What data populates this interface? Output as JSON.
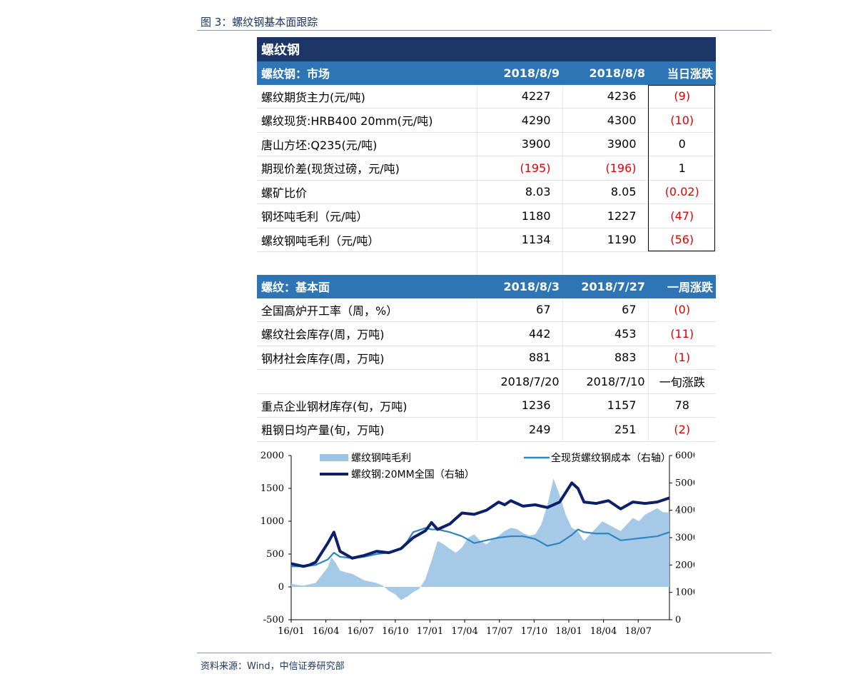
{
  "figure_title": "图 3：螺纹钢基本面跟踪",
  "source": "资料来源：Wind，中信证券研究部",
  "table": {
    "title": "螺纹钢",
    "market_header": [
      "螺纹钢：市场",
      "2018/8/9",
      "2018/8/8",
      "当日涨跌"
    ],
    "market_rows": [
      {
        "label": "螺纹期货主力(元/吨)",
        "v1": "4227",
        "v2": "4236",
        "chg": "(9)",
        "neg": true
      },
      {
        "label": "螺纹现货:HRB400 20mm(元/吨)",
        "v1": "4290",
        "v2": "4300",
        "chg": "(10)",
        "neg": true
      },
      {
        "label": "唐山方坯:Q235(元/吨)",
        "v1": "3900",
        "v2": "3900",
        "chg": "0",
        "neg": false
      },
      {
        "label": "期现价差(现货过磅，元/吨)",
        "v1": "(195)",
        "v2": "(196)",
        "chg": "1",
        "neg": false,
        "v_neg": true
      },
      {
        "label": "螺矿比价",
        "v1": "8.03",
        "v2": "8.05",
        "chg": "(0.02)",
        "neg": true
      },
      {
        "label": "钢坯吨毛利（元/吨）",
        "v1": "1180",
        "v2": "1227",
        "chg": "(47)",
        "neg": true
      },
      {
        "label": "螺纹钢吨毛利（元/吨）",
        "v1": "1134",
        "v2": "1190",
        "chg": "(56)",
        "neg": true
      }
    ],
    "fund_header": [
      "螺纹：基本面",
      "2018/8/3",
      "2018/7/27",
      "一周涨跌"
    ],
    "fund_rows": [
      {
        "label": "全国高炉开工率（周，%）",
        "v1": "67",
        "v2": "67",
        "chg": "(0)",
        "neg": true
      },
      {
        "label": "螺纹社会库存(周，万吨)",
        "v1": "442",
        "v2": "453",
        "chg": "(11)",
        "neg": true
      },
      {
        "label": "钢材社会库存(周，万吨)",
        "v1": "881",
        "v2": "883",
        "chg": "(1)",
        "neg": true
      }
    ],
    "sub_header": [
      "2018/7/20",
      "2018/7/10",
      "一旬涨跌"
    ],
    "sub_rows": [
      {
        "label": "重点企业钢材库存(旬，万吨)",
        "v1": "1236",
        "v2": "1157",
        "chg": "78",
        "neg": false
      },
      {
        "label": "粗钢日均产量(旬，万吨)",
        "v1": "249",
        "v2": "251",
        "chg": "(2)",
        "neg": true
      }
    ]
  },
  "chart_data": {
    "type": "area",
    "x_ticks": [
      "16/01",
      "16/04",
      "16/07",
      "16/10",
      "17/01",
      "17/04",
      "17/07",
      "17/10",
      "18/01",
      "18/04",
      "18/07"
    ],
    "y_left_ticks": [
      "2000",
      "1500",
      "1000",
      "500",
      "0",
      "-500"
    ],
    "y_right_ticks": [
      "6000",
      "5000",
      "4000",
      "3000",
      "2000",
      "1000",
      "0"
    ],
    "ylim_left": [
      -500,
      2000
    ],
    "ylim_right": [
      0,
      6000
    ],
    "series": [
      {
        "name": "螺纹钢吨毛利",
        "axis": "left",
        "style": "area",
        "color": "#9dc3e6",
        "x": [
          0,
          0.5,
          1,
          1.5,
          2,
          2.5,
          3,
          3.3,
          3.6,
          4,
          4.5,
          5,
          5.5,
          6,
          6.5,
          7,
          7.5,
          8,
          8.5,
          9,
          9.5,
          10,
          10.5,
          11,
          11.5,
          12,
          12.5,
          13,
          13.5,
          14,
          14.5,
          15,
          15.5,
          16,
          16.5,
          17,
          17.5,
          18,
          18.5,
          19,
          19.5,
          20,
          20.5,
          21,
          21.5,
          22,
          22.5,
          23,
          23.5,
          24,
          24.5,
          25,
          25.5,
          26,
          26.5,
          27,
          27.5,
          28,
          28.5,
          29,
          29.5,
          30,
          30.5,
          31
        ],
        "y": [
          50,
          30,
          20,
          40,
          60,
          180,
          300,
          450,
          380,
          250,
          220,
          200,
          150,
          100,
          80,
          60,
          20,
          -60,
          -110,
          -200,
          -150,
          -80,
          -30,
          120,
          400,
          700,
          650,
          580,
          520,
          600,
          750,
          800,
          700,
          650,
          720,
          780,
          850,
          900,
          880,
          820,
          780,
          800,
          950,
          1250,
          1650,
          1400,
          1100,
          900,
          850,
          700,
          800,
          900,
          1000,
          950,
          900,
          850,
          950,
          1050,
          1000,
          1100,
          1150,
          1200,
          1134,
          1134
        ]
      },
      {
        "name": "全现货螺纹钢成本（右轴）",
        "axis": "right",
        "style": "line",
        "color": "#2e86c1",
        "x": [
          0,
          1,
          2,
          3,
          3.5,
          4,
          5,
          6,
          7,
          8,
          9,
          9.5,
          10,
          11,
          11.5,
          12,
          13,
          14,
          15,
          16,
          17,
          18,
          19,
          20,
          21,
          22,
          23,
          23.5,
          24,
          25,
          26,
          27,
          28,
          29,
          30,
          31
        ],
        "y": [
          1950,
          1950,
          2000,
          2200,
          2450,
          2300,
          2250,
          2300,
          2400,
          2450,
          2600,
          2850,
          3200,
          3350,
          3300,
          3300,
          3200,
          3050,
          2800,
          2900,
          3000,
          3050,
          3050,
          2950,
          2700,
          2800,
          3100,
          3300,
          3200,
          3150,
          3150,
          2900,
          2950,
          3000,
          3050,
          3200
        ]
      },
      {
        "name": "螺纹钢:20MM全国（右轴）",
        "axis": "right",
        "style": "line",
        "color": "#0b1f6b",
        "x": [
          0,
          1,
          1.5,
          2,
          3,
          3.5,
          4,
          5,
          6,
          7,
          8,
          9,
          10,
          11,
          11.5,
          12,
          13,
          14,
          15,
          16,
          17,
          17.5,
          18,
          19,
          20,
          21,
          22,
          23,
          23.5,
          24,
          25,
          26,
          27,
          28,
          29,
          30,
          31
        ],
        "y": [
          2050,
          1950,
          2000,
          2100,
          2800,
          3200,
          2500,
          2250,
          2350,
          2500,
          2450,
          2600,
          3000,
          3250,
          3550,
          3300,
          3500,
          3900,
          3850,
          4000,
          4300,
          4200,
          4350,
          4150,
          4200,
          4100,
          4300,
          5000,
          4800,
          4300,
          4250,
          4350,
          4050,
          4300,
          4250,
          4300,
          4450
        ]
      }
    ]
  }
}
